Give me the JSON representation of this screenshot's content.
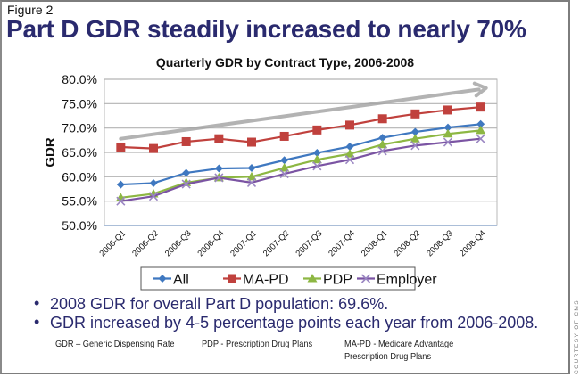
{
  "figure_label": "Figure 2",
  "headline": "Part D GDR steadily increased to nearly 70%",
  "bullets": [
    "2008 GDR for overall Part D population: 69.6%.",
    "GDR increased by 4-5 percentage points each year from 2006-2008."
  ],
  "footnotes": [
    {
      "text": "GDR – Generic Dispensing Rate"
    },
    {
      "text": "PDP - Prescription Drug Plans"
    },
    {
      "text": "MA-PD - Medicare Advantage",
      "text2": "Prescription Drug Plans"
    }
  ],
  "credit": "COURTESY OF CMS",
  "chart_data": {
    "type": "line",
    "title": "Quarterly GDR by Contract Type, 2006-2008",
    "xlabel": "",
    "ylabel": "GDR",
    "ylim": [
      50,
      80
    ],
    "yticks": [
      50,
      55,
      60,
      65,
      70,
      75,
      80
    ],
    "ytick_labels": [
      "50.0%",
      "55.0%",
      "60.0%",
      "65.0%",
      "70.0%",
      "75.0%",
      "80.0%"
    ],
    "grid": true,
    "legend_position": "bottom",
    "categories": [
      "2006-Q1",
      "2006-Q2",
      "2006-Q3",
      "2006-Q4",
      "2007-Q1",
      "2007-Q2",
      "2007-Q3",
      "2007-Q4",
      "2008-Q1",
      "2008-Q2",
      "2008-Q3",
      "2008-Q4"
    ],
    "series": [
      {
        "name": "All",
        "color": "#3f78c0",
        "marker": "diamond",
        "values": [
          58.4,
          58.7,
          60.8,
          61.7,
          61.8,
          63.4,
          64.9,
          66.2,
          68.0,
          69.2,
          70.1,
          70.8
        ]
      },
      {
        "name": "MA-PD",
        "color": "#c0413d",
        "marker": "square",
        "values": [
          66.1,
          65.8,
          67.2,
          67.8,
          67.1,
          68.3,
          69.6,
          70.6,
          71.9,
          72.9,
          73.7,
          74.3
        ]
      },
      {
        "name": "PDP",
        "color": "#8db743",
        "marker": "triangle",
        "values": [
          55.7,
          56.5,
          58.8,
          59.8,
          60.0,
          61.8,
          63.5,
          64.7,
          66.6,
          67.8,
          68.8,
          69.5
        ]
      },
      {
        "name": "Employer",
        "color": "#7b54a3",
        "marker": "x",
        "values": [
          55.0,
          56.0,
          58.5,
          59.8,
          58.8,
          60.6,
          62.2,
          63.5,
          65.3,
          66.4,
          67.1,
          67.8
        ]
      }
    ],
    "annotations": [
      {
        "type": "trend-arrow",
        "color": "#a6a6a6",
        "from": {
          "category": "2006-Q1",
          "y": 67.8
        },
        "to": {
          "category": "2008-Q4",
          "y": 78.2
        }
      }
    ]
  }
}
